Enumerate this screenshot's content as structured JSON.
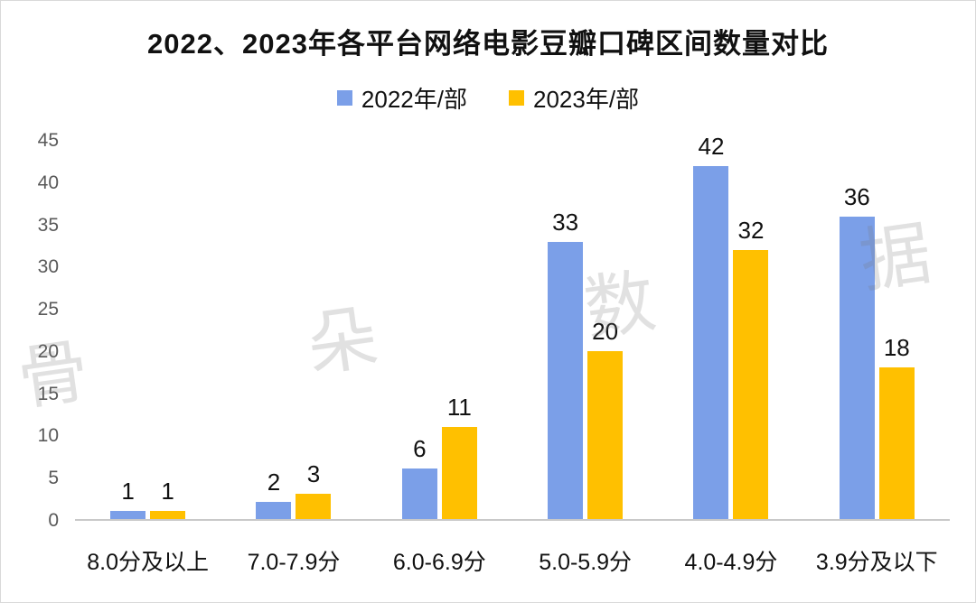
{
  "chart_data": {
    "type": "bar",
    "title": "2022、2023年各平台网络电影豆瓣口碑区间数量对比",
    "categories": [
      "8.0分及以上",
      "7.0-7.9分",
      "6.0-6.9分",
      "5.0-5.9分",
      "4.0-4.9分",
      "3.9分及以下"
    ],
    "series": [
      {
        "name": "2022年/部",
        "color": "#7B9FE8",
        "values": [
          1,
          2,
          6,
          33,
          42,
          36
        ]
      },
      {
        "name": "2023年/部",
        "color": "#FFC000",
        "values": [
          1,
          3,
          11,
          20,
          32,
          18
        ]
      }
    ],
    "xlabel": "",
    "ylabel": "",
    "ylim": [
      0,
      45
    ],
    "ytick_step": 5,
    "grid": false,
    "legend_position": "top",
    "data_labels": true
  },
  "watermark": {
    "chars": [
      "骨",
      "朵",
      "数",
      "据"
    ]
  }
}
